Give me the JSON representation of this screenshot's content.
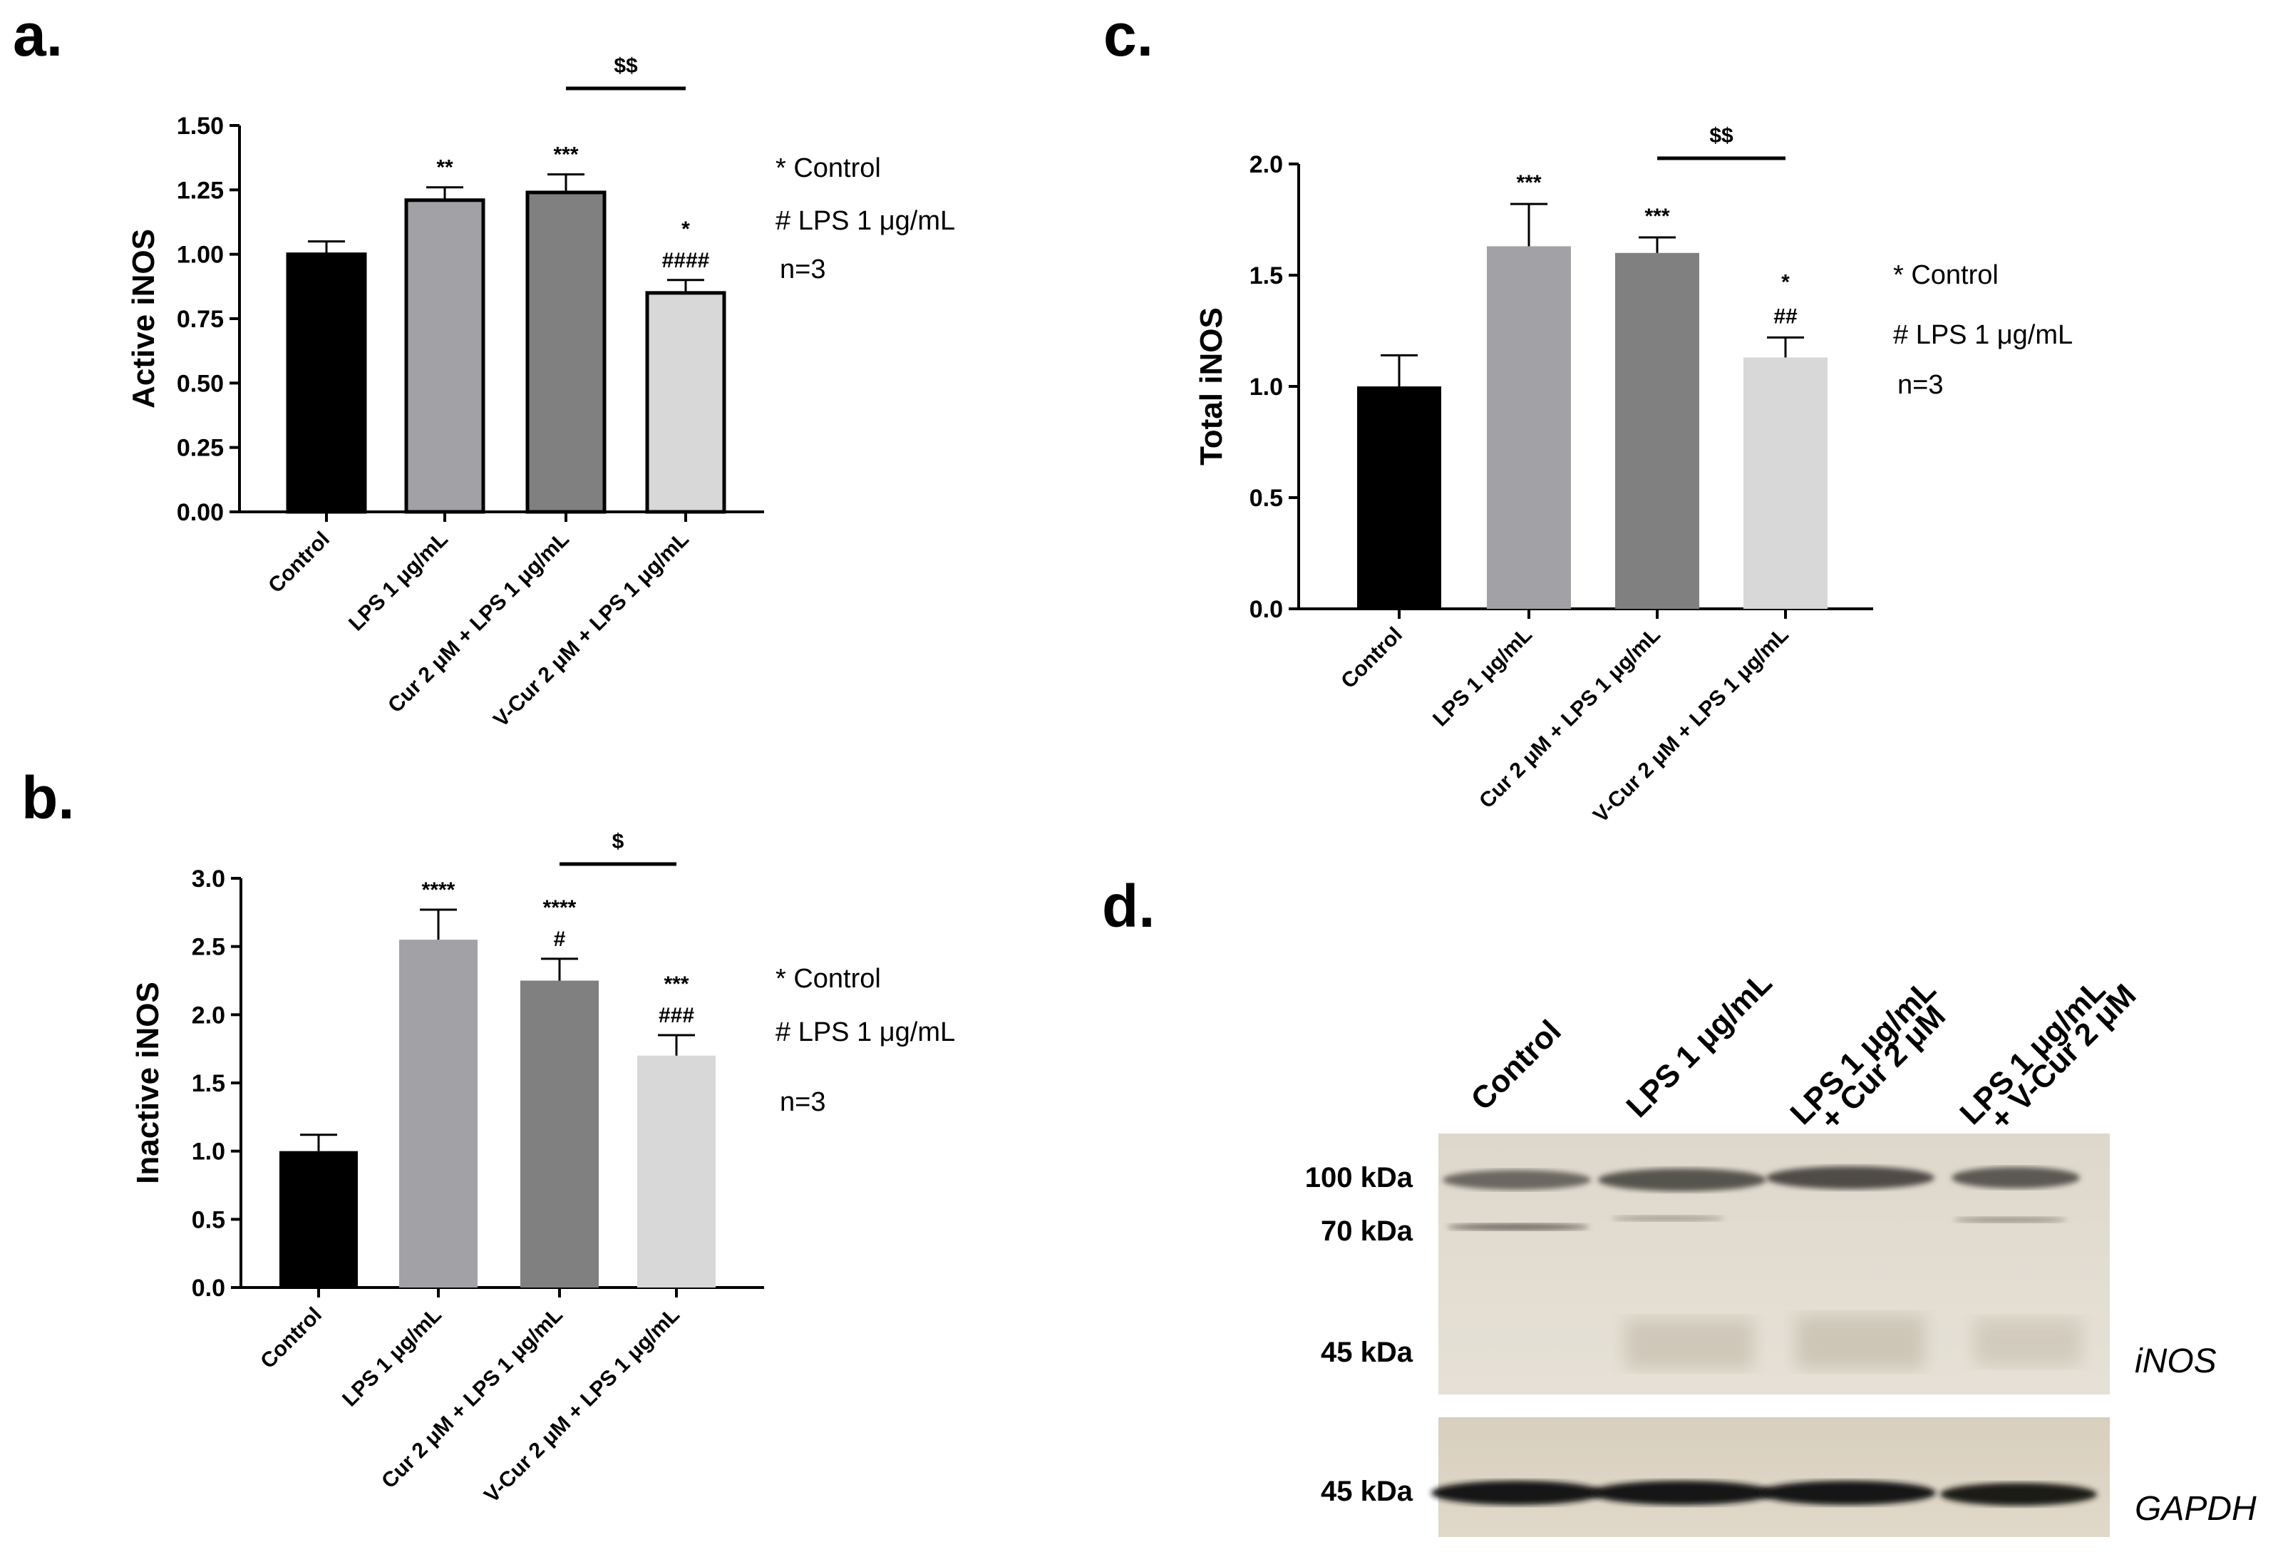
{
  "colors": [
    "#000000",
    "#a2a2a6",
    "#808080",
    "#d8d8d8"
  ],
  "charts": [
    {
      "letter": "a.",
      "type": "bar",
      "ylabel": "Active iNOS",
      "ylim": [
        0,
        1.5
      ],
      "yticks": [
        "0.00",
        "0.25",
        "0.50",
        "0.75",
        "1.00",
        "1.25",
        "1.50"
      ],
      "categories": [
        "Control",
        "LPS 1 μg/mL",
        "Cur 2 μM + LPS 1 μg/mL",
        "V-Cur 2 μM + LPS 1 μg/mL"
      ],
      "values": [
        1.0,
        1.21,
        1.24,
        0.85
      ],
      "errors": [
        0.05,
        0.05,
        0.07,
        0.05
      ],
      "annotations": [
        [],
        [
          "**"
        ],
        [
          "***"
        ],
        [
          "*",
          "####"
        ]
      ],
      "bracket": {
        "label": "$$",
        "from": 2,
        "to": 3
      },
      "legend": [
        "* Control",
        "# LPS 1 μg/mL",
        "n=3"
      ]
    },
    {
      "letter": "b.",
      "type": "bar",
      "ylabel": "Inactive iNOS",
      "ylim": [
        0,
        3.0
      ],
      "yticks": [
        "0.0",
        "0.5",
        "1.0",
        "1.5",
        "2.0",
        "2.5",
        "3.0"
      ],
      "categories": [
        "Control",
        "LPS 1 μg/mL",
        "Cur 2 μM + LPS 1 μg/mL",
        "V-Cur 2 μM + LPS 1 μg/mL"
      ],
      "values": [
        1.0,
        2.55,
        2.25,
        1.7
      ],
      "errors": [
        0.12,
        0.22,
        0.16,
        0.15
      ],
      "annotations": [
        [],
        [
          "****"
        ],
        [
          "****",
          "#"
        ],
        [
          "***",
          "###"
        ]
      ],
      "bracket": {
        "label": "$",
        "from": 2,
        "to": 3
      },
      "legend": [
        "* Control",
        "# LPS 1 μg/mL",
        "n=3"
      ]
    },
    {
      "letter": "c.",
      "type": "bar",
      "ylabel": "Total iNOS",
      "ylim": [
        0,
        2.0
      ],
      "yticks": [
        "0.0",
        "0.5",
        "1.0",
        "1.5",
        "2.0"
      ],
      "categories": [
        "Control",
        "LPS 1 μg/mL",
        "Cur 2 μM + LPS 1 μg/mL",
        "V-Cur 2 μM + LPS 1 μg/mL"
      ],
      "values": [
        1.0,
        1.63,
        1.6,
        1.13
      ],
      "errors": [
        0.14,
        0.19,
        0.07,
        0.09
      ],
      "annotations": [
        [],
        [
          "***"
        ],
        [
          "***"
        ],
        [
          "*",
          "##"
        ]
      ],
      "bracket": {
        "label": "$$",
        "from": 2,
        "to": 3
      },
      "legend": [
        "* Control",
        "# LPS 1 μg/mL",
        "n=3"
      ]
    }
  ],
  "blot": {
    "letter": "d.",
    "lanes": [
      [
        "Control"
      ],
      [
        "LPS 1 μg/mL"
      ],
      [
        "LPS 1 μg/mL",
        "+ Cur 2 μM"
      ],
      [
        "LPS 1 μg/mL",
        "+ V-Cur 2 μM"
      ]
    ],
    "markers_top": [
      "100 kDa",
      "70 kDa",
      "45 kDa"
    ],
    "marker_bottom": "45 kDa",
    "protein_top": "iNOS",
    "protein_bottom": "GAPDH"
  }
}
